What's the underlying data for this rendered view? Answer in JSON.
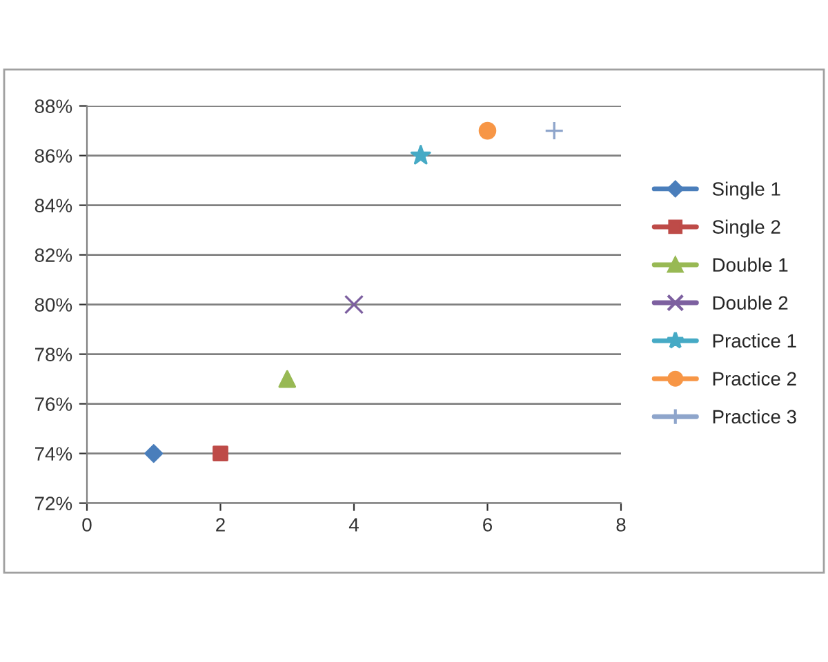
{
  "chart_data": {
    "type": "scatter",
    "legend": "right",
    "grid": "y",
    "xlim": [
      0,
      8
    ],
    "xticks": [
      0,
      2,
      4,
      6,
      8
    ],
    "ylim": [
      72,
      88
    ],
    "yticks": [
      {
        "value": 72,
        "label": "72%"
      },
      {
        "value": 74,
        "label": "74%"
      },
      {
        "value": 76,
        "label": "76%"
      },
      {
        "value": 78,
        "label": "78%"
      },
      {
        "value": 80,
        "label": "80%"
      },
      {
        "value": 82,
        "label": "82%"
      },
      {
        "value": 84,
        "label": "84%"
      },
      {
        "value": 86,
        "label": "86%"
      },
      {
        "value": 88,
        "label": "88%"
      }
    ],
    "series": [
      {
        "name": "Single 1",
        "color": "#4a7ebb",
        "marker": "diamond",
        "x": [
          1
        ],
        "values": [
          74
        ]
      },
      {
        "name": "Single 2",
        "color": "#be4b48",
        "marker": "square",
        "x": [
          2
        ],
        "values": [
          74
        ]
      },
      {
        "name": "Double 1",
        "color": "#98b954",
        "marker": "triangle",
        "x": [
          3
        ],
        "values": [
          77
        ]
      },
      {
        "name": "Double 2",
        "color": "#7d60a0",
        "marker": "cross",
        "x": [
          4
        ],
        "values": [
          80
        ]
      },
      {
        "name": "Practice 1",
        "color": "#46aac5",
        "marker": "star",
        "x": [
          5
        ],
        "values": [
          86
        ]
      },
      {
        "name": "Practice 2",
        "color": "#f79646",
        "marker": "circle",
        "x": [
          6
        ],
        "values": [
          87
        ]
      },
      {
        "name": "Practice 3",
        "color": "#8ea5cb",
        "marker": "plus",
        "x": [
          7
        ],
        "values": [
          87
        ]
      }
    ]
  }
}
